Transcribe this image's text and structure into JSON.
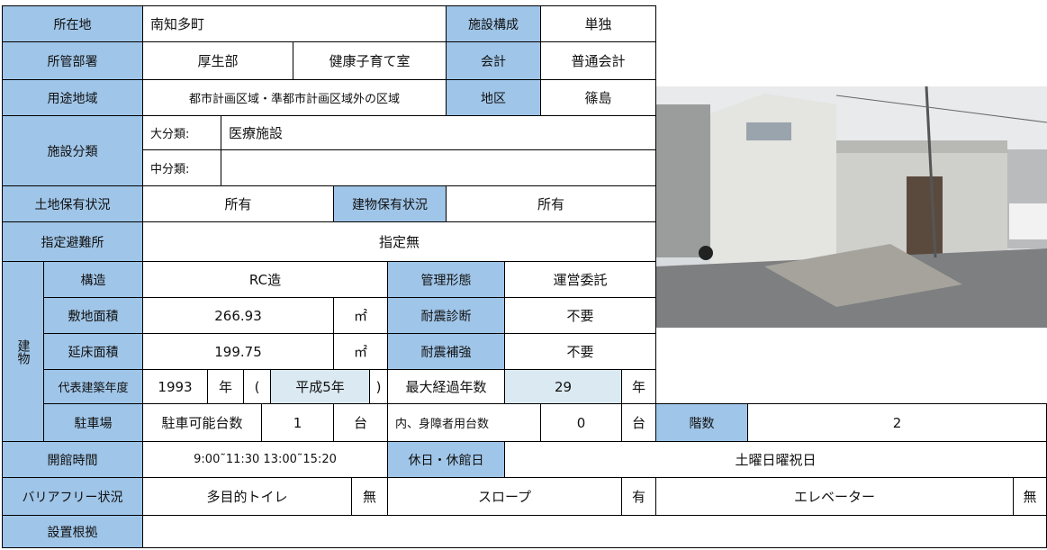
{
  "table": {
    "building_label": "建物",
    "rows": [
      [
        "所在地",
        "南知多町",
        "施設構成",
        "単独"
      ],
      [
        "所管部署",
        "厚生部",
        "健康子育て室",
        "会計",
        "普通会計"
      ],
      [
        "用途地域",
        "都市計画区域・準都市計画区域外の区域",
        "地区",
        "篠島"
      ],
      [
        "施設分類",
        "大分類:",
        "医療施設"
      ],
      [
        "中分類:"
      ],
      [
        "土地保有状況",
        "所有",
        "建物保有状況",
        "所有"
      ],
      [
        "指定避難所",
        "指定無"
      ],
      [
        "構造",
        "RC造",
        "管理形態",
        "運営委託"
      ],
      [
        "敷地面積",
        "266.93",
        "㎡",
        "耐震診断",
        "不要"
      ],
      [
        "延床面積",
        "199.75",
        "㎡",
        "耐震補強",
        "不要"
      ],
      [
        "代表建築年度",
        "1993",
        "年",
        "(",
        "平成5年",
        ")",
        "最大経過年数",
        "29",
        "年"
      ],
      [
        "駐車場",
        "駐車可能台数",
        "1",
        "台",
        "内、身障者用台数",
        "0",
        "台",
        "階数",
        "2"
      ],
      [
        "開館時間",
        "9:00˜11:30  13:00˜15:20",
        "休日・休館日",
        "土曜日曜祝日"
      ],
      [
        "バリアフリー状況",
        "多目的トイレ",
        "無",
        "スロープ",
        "有",
        "エレベーター",
        "無"
      ],
      [
        "設置根拠"
      ]
    ]
  }
}
